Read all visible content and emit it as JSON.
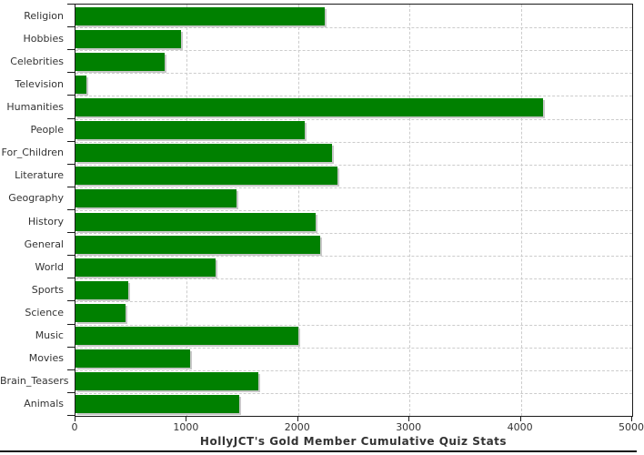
{
  "chart_data": {
    "type": "bar",
    "orientation": "horizontal",
    "title": "HollyJCT's Gold Member Cumulative Quiz Stats",
    "categories": [
      "Religion",
      "Hobbies",
      "Celebrities",
      "Television",
      "Humanities",
      "People",
      "For_Children",
      "Literature",
      "Geography",
      "History",
      "General",
      "World",
      "Sports",
      "Science",
      "Music",
      "Movies",
      "Brain_Teasers",
      "Animals"
    ],
    "values": [
      2240,
      950,
      800,
      100,
      4200,
      2060,
      2300,
      2350,
      1450,
      2160,
      2200,
      1260,
      470,
      450,
      2000,
      1030,
      1640,
      1470
    ],
    "xlabel": "",
    "ylabel": "",
    "xlim": [
      0,
      5000
    ],
    "xticks": [
      0,
      1000,
      2000,
      3000,
      4000,
      5000
    ],
    "grid": "dashed",
    "legend": "none",
    "colors": {
      "bar": "#008000",
      "bar_shadow": "#c8c8c8",
      "gridline": "#cccccc",
      "axis": "#1a1a1a",
      "text": "#333333",
      "background": "#ffffff"
    }
  }
}
